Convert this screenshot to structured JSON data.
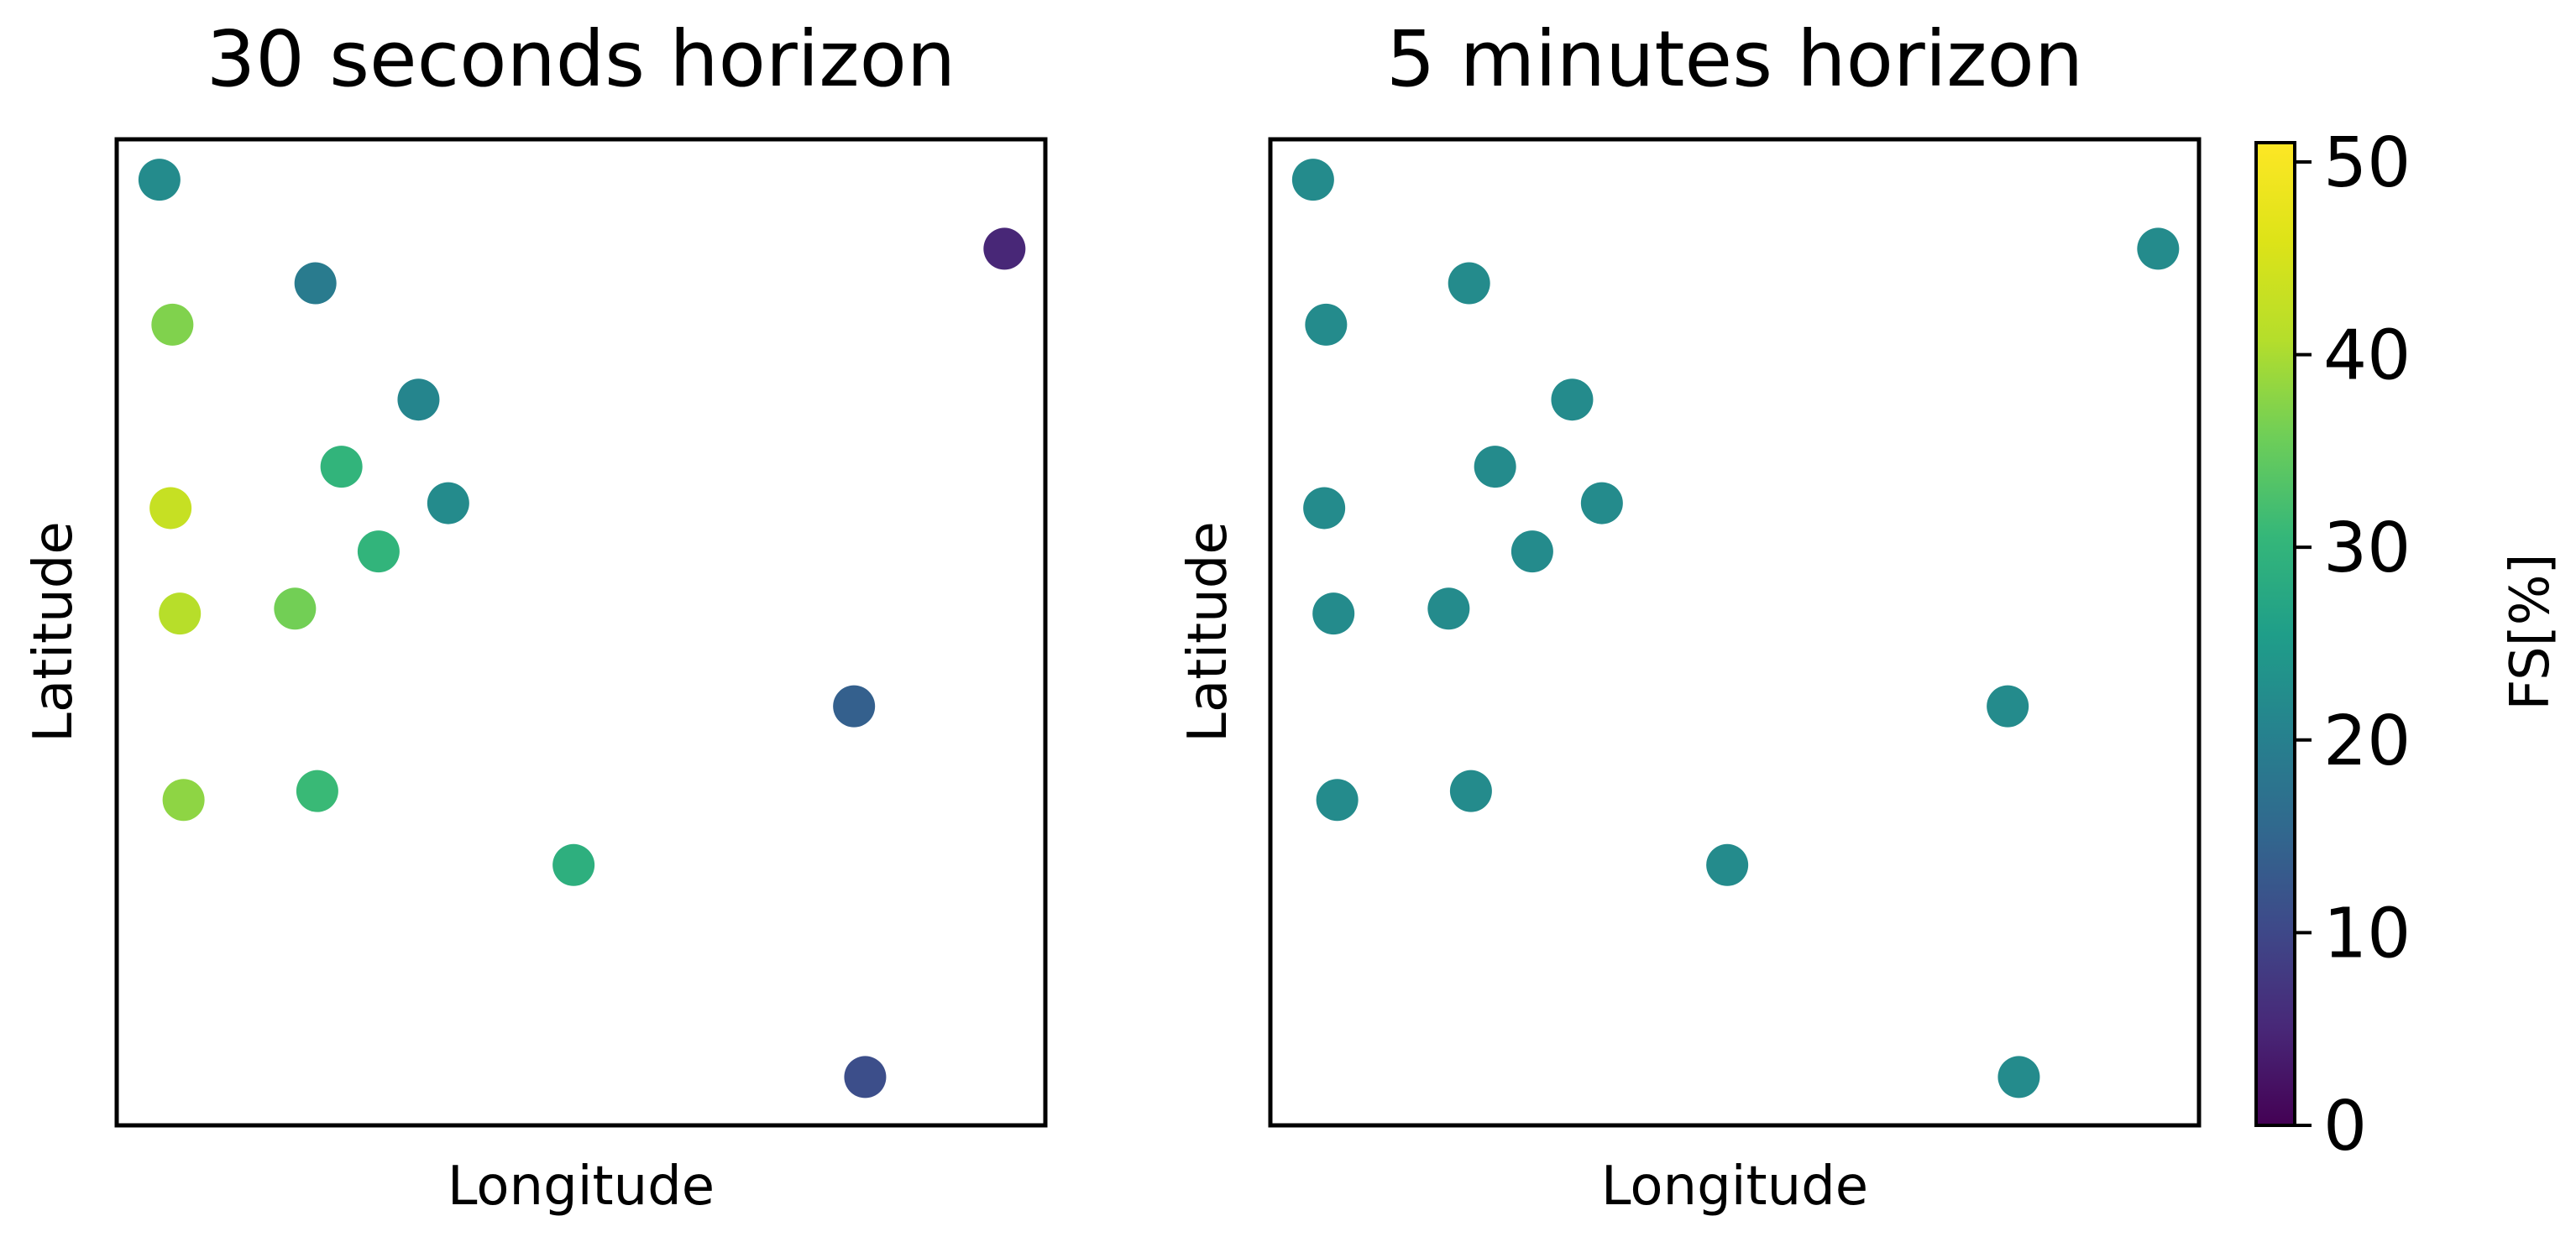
{
  "chart_data": {
    "type": "scatter",
    "colormap": "viridis",
    "colorbar": {
      "label": "FS[%]",
      "range": [
        0,
        51
      ],
      "ticks": [
        0,
        10,
        20,
        30,
        40,
        50
      ]
    },
    "xlabel": "Longitude",
    "ylabel": "Latitude",
    "xlim": [
      0,
      100
    ],
    "ylim": [
      0,
      100
    ],
    "x_ticks_shown": false,
    "y_ticks_shown": false,
    "grid": false,
    "panels": [
      {
        "title": "30 seconds horizon",
        "points": [
          {
            "x": 4.6,
            "y": 95.9,
            "fs": 22
          },
          {
            "x": 21.4,
            "y": 85.4,
            "fs": 19
          },
          {
            "x": 95.6,
            "y": 88.9,
            "fs": 5
          },
          {
            "x": 6.0,
            "y": 81.2,
            "fs": 37
          },
          {
            "x": 32.5,
            "y": 73.6,
            "fs": 21
          },
          {
            "x": 24.2,
            "y": 66.8,
            "fs": 30
          },
          {
            "x": 35.7,
            "y": 63.1,
            "fs": 22
          },
          {
            "x": 5.8,
            "y": 62.6,
            "fs": 43
          },
          {
            "x": 28.2,
            "y": 58.2,
            "fs": 30
          },
          {
            "x": 6.8,
            "y": 51.9,
            "fs": 41
          },
          {
            "x": 19.2,
            "y": 52.4,
            "fs": 36
          },
          {
            "x": 79.4,
            "y": 42.5,
            "fs": 14
          },
          {
            "x": 7.2,
            "y": 33.0,
            "fs": 38
          },
          {
            "x": 21.6,
            "y": 33.9,
            "fs": 31
          },
          {
            "x": 49.2,
            "y": 26.4,
            "fs": 29
          },
          {
            "x": 80.6,
            "y": 4.9,
            "fs": 11
          }
        ]
      },
      {
        "title": "5 minutes horizon",
        "points": [
          {
            "x": 4.6,
            "y": 95.9,
            "fs": 22
          },
          {
            "x": 21.4,
            "y": 85.4,
            "fs": 22
          },
          {
            "x": 95.6,
            "y": 88.9,
            "fs": 22
          },
          {
            "x": 6.0,
            "y": 81.2,
            "fs": 22
          },
          {
            "x": 32.5,
            "y": 73.6,
            "fs": 22
          },
          {
            "x": 24.2,
            "y": 66.8,
            "fs": 22
          },
          {
            "x": 35.7,
            "y": 63.1,
            "fs": 22
          },
          {
            "x": 5.8,
            "y": 62.6,
            "fs": 22
          },
          {
            "x": 28.2,
            "y": 58.2,
            "fs": 22
          },
          {
            "x": 6.8,
            "y": 51.9,
            "fs": 22
          },
          {
            "x": 19.2,
            "y": 52.4,
            "fs": 22
          },
          {
            "x": 79.4,
            "y": 42.5,
            "fs": 22
          },
          {
            "x": 7.2,
            "y": 33.0,
            "fs": 22
          },
          {
            "x": 21.6,
            "y": 33.9,
            "fs": 22
          },
          {
            "x": 49.2,
            "y": 26.4,
            "fs": 22
          },
          {
            "x": 80.6,
            "y": 4.9,
            "fs": 22
          }
        ]
      }
    ]
  }
}
